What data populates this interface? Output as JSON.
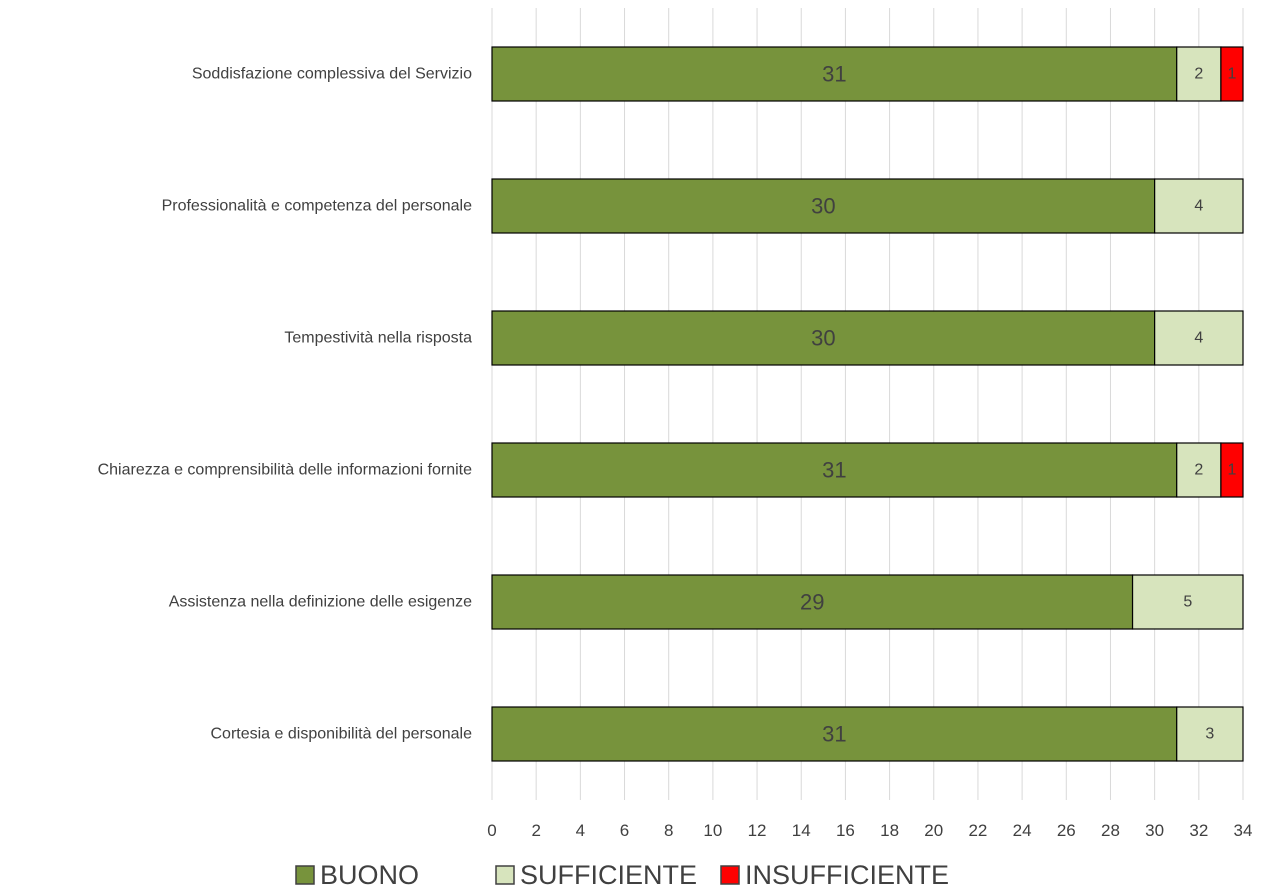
{
  "chart_data": {
    "type": "bar",
    "orientation": "horizontal",
    "stacked": true,
    "title": "",
    "xlabel": "",
    "ylabel": "",
    "categories": [
      "Soddisfazione complessiva del Servizio",
      "Professionalità e competenza del personale",
      "Tempestività nella risposta",
      "Chiarezza e comprensibilità delle informazioni fornite",
      "Assistenza nella definizione delle esigenze",
      "Cortesia e disponibilità del personale"
    ],
    "series": [
      {
        "name": "BUONO",
        "color": "#77933C",
        "values": [
          31,
          30,
          30,
          31,
          29,
          31
        ]
      },
      {
        "name": "SUFFICIENTE",
        "color": "#D7E4BD",
        "values": [
          2,
          4,
          4,
          2,
          5,
          3
        ]
      },
      {
        "name": "INSUFFICIENTE",
        "color": "#FF0000",
        "values": [
          1,
          0,
          0,
          1,
          0,
          0
        ]
      }
    ],
    "xlim": [
      0,
      34
    ],
    "x_ticks": [
      "0",
      "2",
      "4",
      "6",
      "8",
      "10",
      "12",
      "14",
      "16",
      "18",
      "20",
      "22",
      "24",
      "26",
      "28",
      "30",
      "32",
      "34"
    ],
    "grid": "vertical",
    "legend": "bottom-center"
  }
}
